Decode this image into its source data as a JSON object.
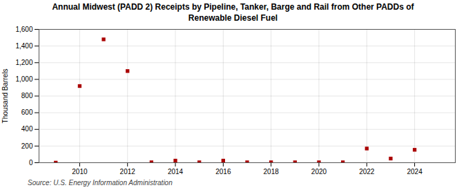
{
  "chart_data": {
    "type": "scatter",
    "title": "Annual Midwest (PADD 2) Receipts by Pipeline, Tanker, Barge and Rail from Other PADDs of\nRenewable Diesel Fuel",
    "y_label": "Thousand Barrels",
    "annotations": [
      "Source: U.S. Energy Information Administration"
    ],
    "x": [
      2009,
      2010,
      2011,
      2012,
      2013,
      2014,
      2015,
      2016,
      2017,
      2018,
      2019,
      2020,
      2021,
      2022,
      2023,
      2024
    ],
    "values": [
      1,
      920,
      1480,
      1100,
      5,
      25,
      5,
      25,
      5,
      5,
      5,
      5,
      5,
      170,
      50,
      155
    ],
    "color": "#aa0000",
    "marker": "square",
    "xlim": [
      2008.3,
      2025.7
    ],
    "xticks": [
      2010,
      2012,
      2014,
      2016,
      2018,
      2020,
      2022,
      2024
    ],
    "ylim": [
      0,
      1600
    ],
    "yticks": [
      0,
      200,
      400,
      600,
      800,
      {
        "value": 1000,
        "label": "1,000"
      },
      {
        "value": 1200,
        "label": "1,200"
      },
      {
        "value": 1400,
        "label": "1,400"
      },
      {
        "value": 1600,
        "label": "1,600"
      }
    ],
    "grid": true
  }
}
